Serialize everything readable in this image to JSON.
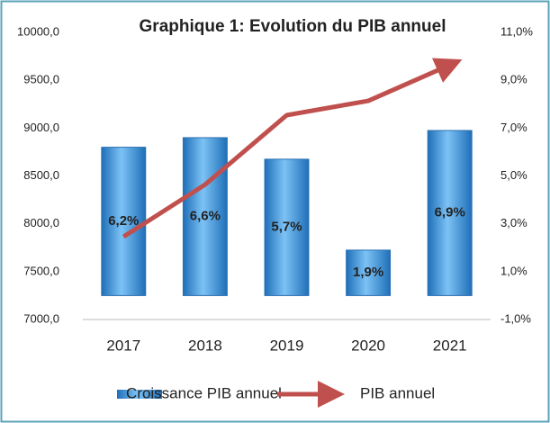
{
  "chart_data": {
    "type": "bar",
    "title": "Graphique 1: Evolution du PIB annuel",
    "categories": [
      "2017",
      "2018",
      "2019",
      "2020",
      "2021"
    ],
    "series": [
      {
        "name": "Croissance PIB annuel",
        "type": "bar",
        "axis": "y2",
        "color": "#4a9fe0",
        "values": [
          6.2,
          6.6,
          5.7,
          1.9,
          6.9
        ],
        "value_labels": [
          "6,2%",
          "6,6%",
          "5,7%",
          "1,9%",
          "6,9%"
        ]
      },
      {
        "name": "PIB annuel",
        "type": "line",
        "color": "#c0504d",
        "values": [
          7865,
          8410,
          9135,
          9285,
          9660
        ]
      }
    ],
    "ylim": [
      7000,
      10000
    ],
    "yticks": [
      {
        "value": 7000,
        "label": "7000,0"
      },
      {
        "value": 7500,
        "label": "7500,0"
      },
      {
        "value": 8000,
        "label": "8000,0"
      },
      {
        "value": 8500,
        "label": "8500,0"
      },
      {
        "value": 9000,
        "label": "9000,0"
      },
      {
        "value": 9500,
        "label": "9500,0"
      },
      {
        "value": 10000,
        "label": "10000,0"
      }
    ],
    "y2lim": [
      -1,
      11
    ],
    "y2ticks": [
      {
        "value": -1,
        "label": "-1,0%"
      },
      {
        "value": 1,
        "label": "1,0%"
      },
      {
        "value": 3,
        "label": "3,0%"
      },
      {
        "value": 5,
        "label": "5,0%"
      },
      {
        "value": 7,
        "label": "7,0%"
      },
      {
        "value": 9,
        "label": "9,0%"
      },
      {
        "value": 11,
        "label": "11,0%"
      }
    ],
    "grid": false,
    "legend": "bottom"
  }
}
